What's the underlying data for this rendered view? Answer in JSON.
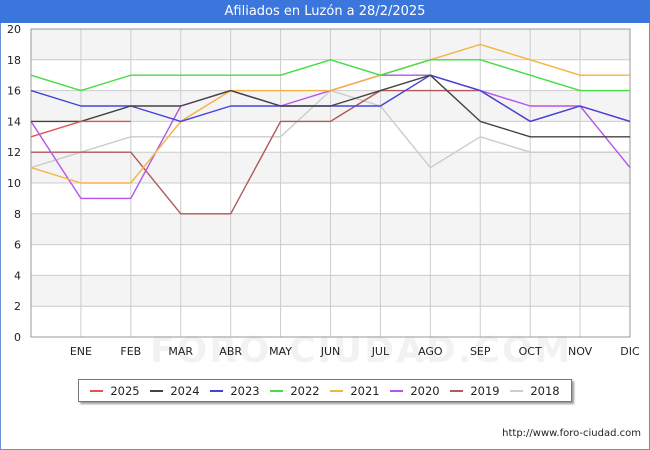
{
  "chart_data": {
    "type": "line",
    "title": "Afiliados en Luzón a 28/2/2025",
    "categories": [
      "",
      "ENE",
      "FEB",
      "MAR",
      "ABR",
      "MAY",
      "JUN",
      "JUL",
      "AGO",
      "SEP",
      "OCT",
      "NOV",
      "DIC"
    ],
    "ylim": [
      0,
      20
    ],
    "yticks": [
      0,
      2,
      4,
      6,
      8,
      10,
      12,
      14,
      16,
      18,
      20
    ],
    "grid": true,
    "legend_position": "bottom",
    "series": [
      {
        "name": "2025",
        "color": "#e05555",
        "values": [
          13,
          14,
          14,
          null,
          null,
          null,
          null,
          null,
          null,
          null,
          null,
          null,
          null
        ]
      },
      {
        "name": "2024",
        "color": "#444444",
        "values": [
          14,
          14,
          15,
          15,
          16,
          15,
          15,
          16,
          17,
          14,
          13,
          13,
          13
        ]
      },
      {
        "name": "2023",
        "color": "#4444dd",
        "values": [
          16,
          15,
          15,
          14,
          15,
          15,
          15,
          15,
          17,
          16,
          14,
          15,
          14
        ]
      },
      {
        "name": "2022",
        "color": "#44dd44",
        "values": [
          17,
          16,
          17,
          17,
          17,
          17,
          18,
          17,
          18,
          18,
          17,
          16,
          16
        ]
      },
      {
        "name": "2021",
        "color": "#f5b342",
        "values": [
          11,
          10,
          10,
          14,
          16,
          16,
          16,
          17,
          18,
          19,
          18,
          17,
          17
        ]
      },
      {
        "name": "2020",
        "color": "#b355e8",
        "values": [
          14,
          9,
          9,
          15,
          16,
          15,
          16,
          17,
          17,
          16,
          15,
          15,
          11
        ]
      },
      {
        "name": "2019",
        "color": "#b05a5a",
        "values": [
          12,
          12,
          12,
          8,
          8,
          14,
          14,
          16,
          16,
          16,
          14,
          15,
          14
        ]
      },
      {
        "name": "2018",
        "color": "#cccccc",
        "values": [
          11,
          12,
          13,
          13,
          13,
          13,
          16,
          15,
          11,
          13,
          12,
          12,
          12
        ]
      }
    ]
  },
  "footer": {
    "source": "http://www.foro-ciudad.com"
  },
  "watermark": "FORO-CIUDAD.COM",
  "colors": {
    "title_bar": "#3b76dc",
    "band": "#f4f4f4",
    "grid": "#cccccc"
  }
}
